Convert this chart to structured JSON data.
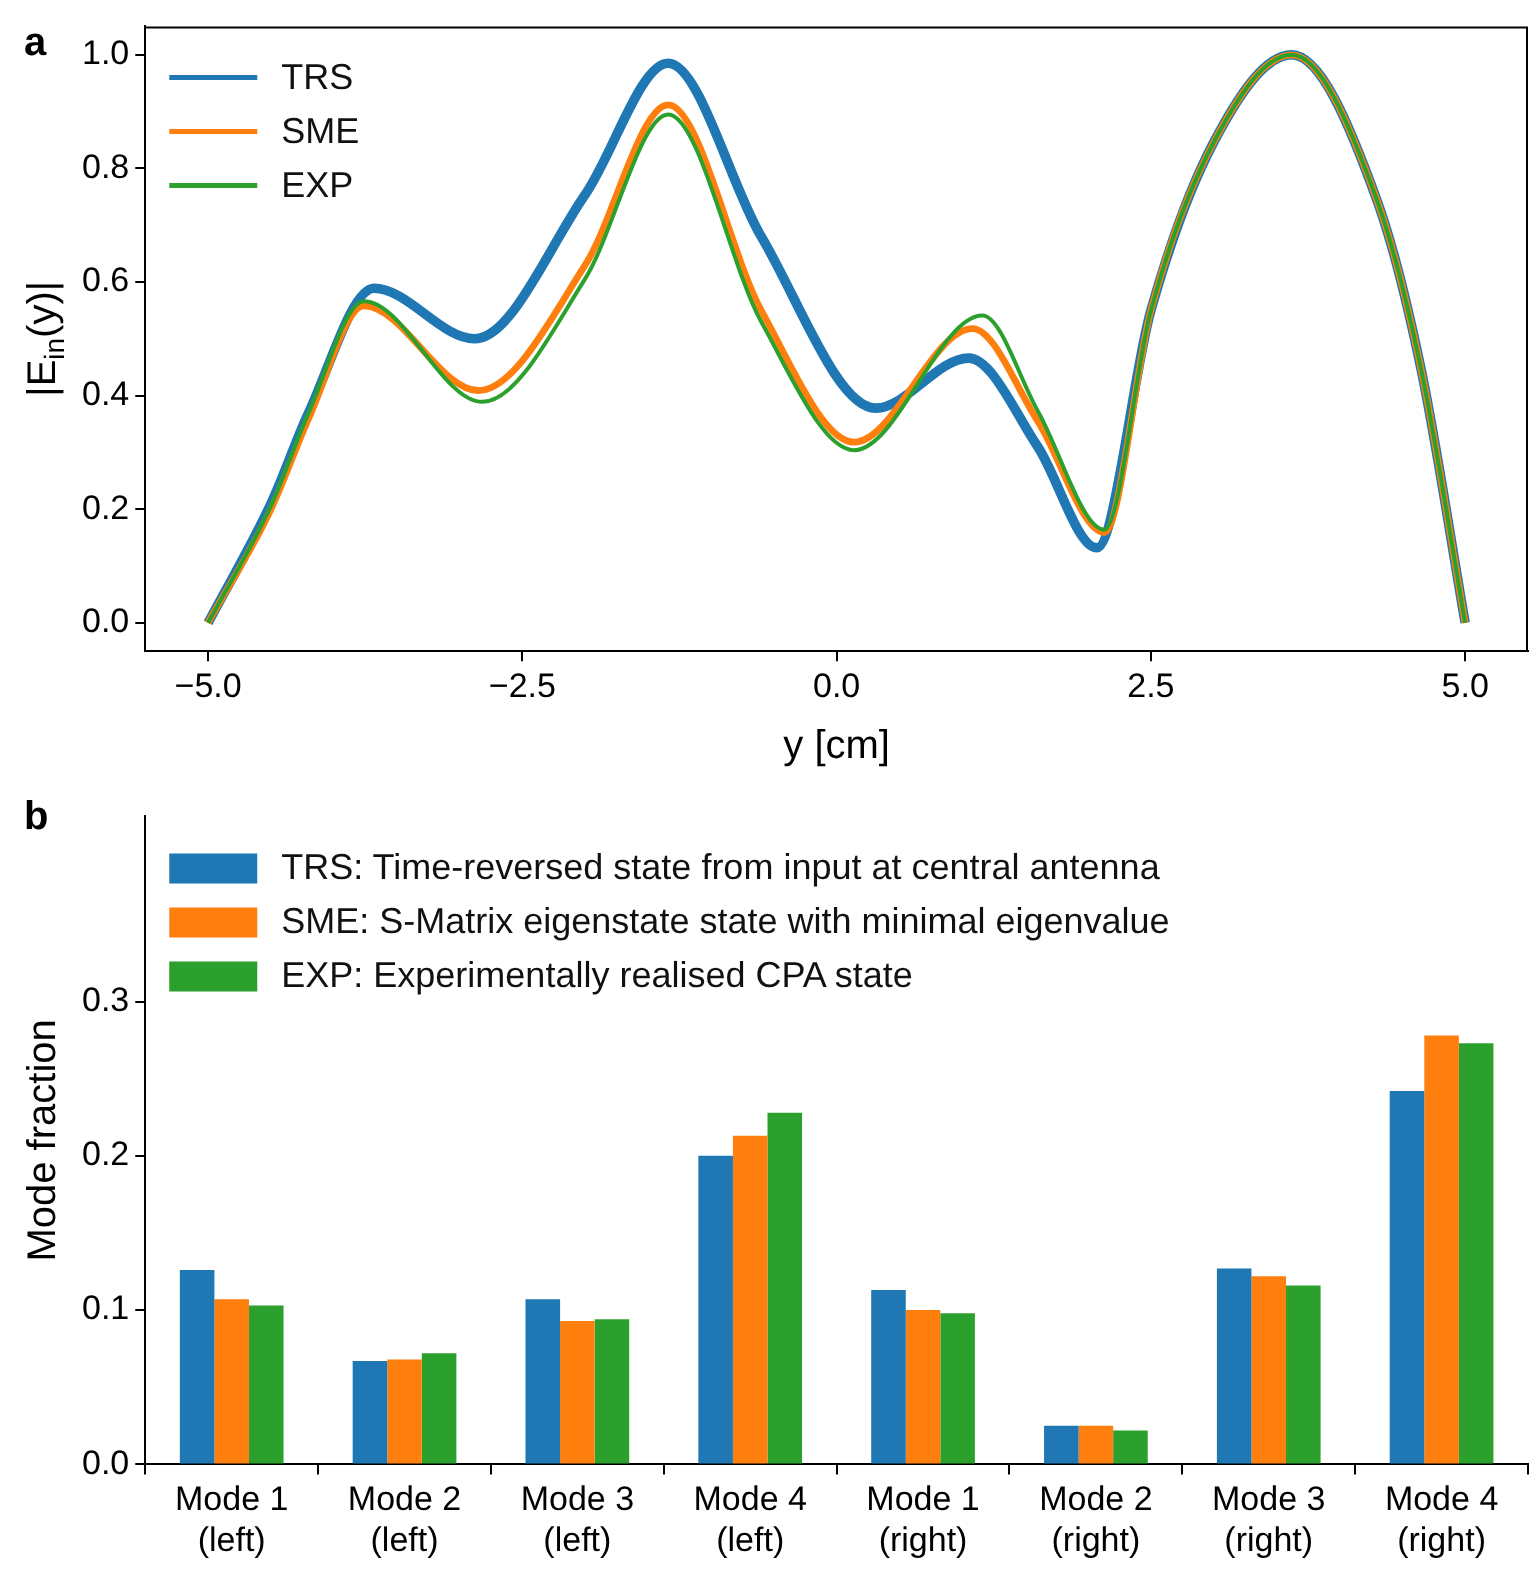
{
  "chart_data": [
    {
      "type": "line",
      "xlabel": "y [cm]",
      "ylabel": "|E$_{in}$(y)|",
      "xlim": [
        -5.5,
        5.5
      ],
      "xticks": [
        {
          "value": -5,
          "label": "−5.0"
        },
        {
          "value": -2.5,
          "label": "−2.5"
        },
        {
          "value": 0,
          "label": "0.0"
        },
        {
          "value": 2.5,
          "label": "2.5"
        },
        {
          "value": 5,
          "label": "5.0"
        }
      ],
      "ylim": [
        -0.05,
        1.05
      ],
      "yticks": [
        {
          "value": 0,
          "label": "0.0"
        },
        {
          "value": 0.2,
          "label": "0.2"
        },
        {
          "value": 0.4,
          "label": "0.4"
        },
        {
          "value": 0.6,
          "label": "0.6"
        },
        {
          "value": 0.8,
          "label": "0.8"
        },
        {
          "value": 1,
          "label": "1.0"
        }
      ],
      "grid": false,
      "legend": "top left",
      "marker": "none",
      "line_style": "solid",
      "annotations": [
        "a"
      ],
      "series": [
        {
          "name": "TRS",
          "color": "#1f77b4",
          "x": [
            -5,
            -4.5,
            -4.2,
            -3.68,
            -2.88,
            -2.0,
            -1.34,
            -0.6,
            0.31,
            1.05,
            1.6,
            2.07,
            2.5,
            3.0,
            3.62,
            4.3,
            4.65,
            5
          ],
          "values": [
            0,
            0.21,
            0.37,
            0.589,
            0.5,
            0.754,
            0.985,
            0.68,
            0.378,
            0.466,
            0.31,
            0.132,
            0.55,
            0.846,
            1.0,
            0.743,
            0.446,
            0
          ]
        },
        {
          "name": "SME",
          "color": "#ff7f0e",
          "x": [
            -5,
            -4.5,
            -4.2,
            -3.76,
            -2.85,
            -2.0,
            -1.34,
            -0.6,
            0.14,
            1.08,
            1.6,
            2.13,
            2.5,
            3.0,
            3.62,
            4.3,
            4.65,
            5
          ],
          "values": [
            0,
            0.2,
            0.36,
            0.558,
            0.409,
            0.63,
            0.912,
            0.55,
            0.318,
            0.518,
            0.355,
            0.159,
            0.55,
            0.846,
            1.0,
            0.743,
            0.446,
            0
          ]
        },
        {
          "name": "EXP",
          "color": "#2ca02c",
          "x": [
            -5,
            -4.5,
            -4.2,
            -3.76,
            -2.82,
            -2.0,
            -1.34,
            -0.6,
            0.14,
            1.16,
            1.6,
            2.13,
            2.5,
            3.0,
            3.62,
            4.3,
            4.65,
            5
          ],
          "values": [
            0,
            0.206,
            0.37,
            0.566,
            0.389,
            0.606,
            0.895,
            0.53,
            0.304,
            0.541,
            0.373,
            0.164,
            0.55,
            0.846,
            1.0,
            0.743,
            0.446,
            0
          ]
        }
      ]
    },
    {
      "type": "bar",
      "ylabel": "Mode fraction",
      "categories": [
        "Mode 1 (left)",
        "Mode 2 (left)",
        "Mode 3 (left)",
        "Mode 4 (left)",
        "Mode 1 (right)",
        "Mode 2 (right)",
        "Mode 3 (right)",
        "Mode 4 (right)"
      ],
      "ylim": [
        0,
        0.42
      ],
      "yticks": [
        {
          "value": 0,
          "label": "0.0"
        },
        {
          "value": 0.1,
          "label": "0.1"
        },
        {
          "value": 0.2,
          "label": "0.2"
        },
        {
          "value": 0.3,
          "label": "0.3"
        }
      ],
      "grid": false,
      "legend": "top left",
      "annotations": [
        "b"
      ],
      "series": [
        {
          "name": "TRS: Time-reversed state from input at central antenna",
          "color": "#1f77b4",
          "values": [
            0.126,
            0.067,
            0.107,
            0.2,
            0.113,
            0.025,
            0.127,
            0.242
          ]
        },
        {
          "name": "SME: S-Matrix eigenstate state with minimal eigenvalue",
          "color": "#ff7f0e",
          "values": [
            0.107,
            0.068,
            0.093,
            0.213,
            0.1,
            0.025,
            0.122,
            0.278
          ]
        },
        {
          "name": "EXP: Experimentally realised CPA state",
          "color": "#2ca02c",
          "values": [
            0.103,
            0.072,
            0.094,
            0.228,
            0.098,
            0.022,
            0.116,
            0.273
          ]
        }
      ]
    }
  ]
}
